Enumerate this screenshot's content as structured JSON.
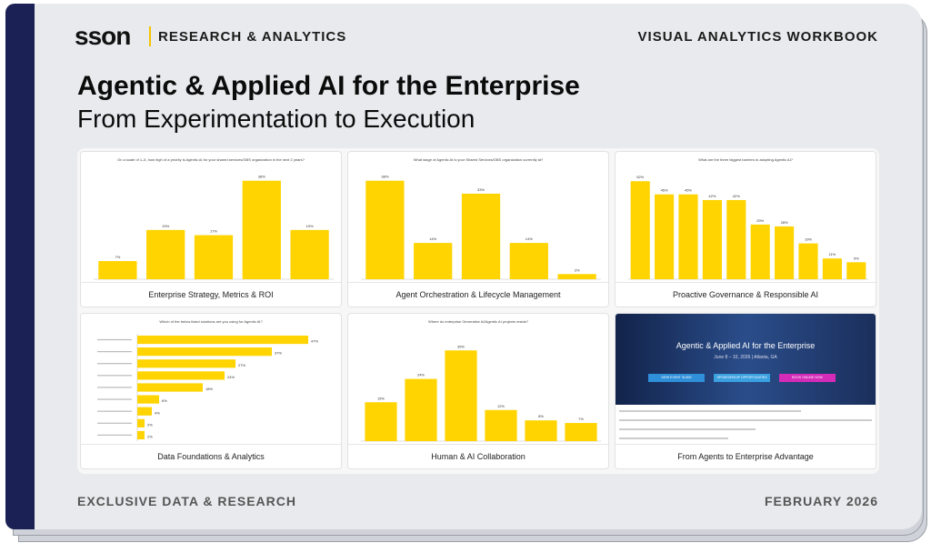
{
  "header": {
    "logo": "sson",
    "brand": "RESEARCH & ANALYTICS",
    "product": "VISUAL ANALYTICS WORKBOOK"
  },
  "title": "Agentic & Applied AI for the Enterprise",
  "subtitle": "From Experimentation to Execution",
  "panels": [
    {
      "caption": "Enterprise Strategy, Metrics & ROI",
      "chart": {
        "type": "column",
        "title": "On a scale of 1–5, how high of a priority is Agentic AI for your shared services/GBS organization in the next 2 years?",
        "values": [
          7,
          19,
          17,
          38,
          19
        ],
        "value_labels": [
          "7%",
          "19%",
          "17%",
          "38%",
          "19%"
        ],
        "ylim": [
          0,
          40
        ],
        "color": "#ffd400"
      }
    },
    {
      "caption": "Agent Orchestration & Lifecycle Management",
      "chart": {
        "type": "column",
        "title": "What stage of Agentic AI is your Shared Services/GBS organization currently at?",
        "values": [
          38,
          14,
          33,
          14,
          2
        ],
        "value_labels": [
          "38%",
          "14%",
          "33%",
          "14%",
          "2%"
        ],
        "ylim": [
          0,
          40
        ],
        "color": "#ffd400"
      }
    },
    {
      "caption": "Proactive Governance & Responsible AI",
      "chart": {
        "type": "column",
        "title": "What are the three biggest barriers to adopting Agentic AI?",
        "values": [
          52,
          45,
          45,
          42,
          42,
          29,
          28,
          19,
          11,
          9
        ],
        "value_labels": [
          "52%",
          "45%",
          "45%",
          "42%",
          "42%",
          "29%",
          "28%",
          "19%",
          "11%",
          "9%"
        ],
        "ylim": [
          0,
          55
        ],
        "color": "#ffd400"
      }
    },
    {
      "caption": "Data Foundations & Analytics",
      "chart": {
        "type": "hbar",
        "title": "Which of the below listed solutions are you using for Agentic AI?",
        "values": [
          47,
          37,
          27,
          24,
          18,
          6,
          4,
          2,
          2
        ],
        "value_labels": [
          "47%",
          "37%",
          "27%",
          "24%",
          "18%",
          "6%",
          "4%",
          "2%",
          "2%"
        ],
        "xlim": [
          0,
          50
        ],
        "color": "#ffd400"
      }
    },
    {
      "caption": "Human & AI Collaboration",
      "chart": {
        "type": "column",
        "title": "Where do enterprise Generative AI/Agentic AI projects reside?",
        "values": [
          15,
          24,
          35,
          12,
          8,
          7
        ],
        "value_labels": [
          "15%",
          "24%",
          "35%",
          "12%",
          "8%",
          "7%"
        ],
        "ylim": [
          0,
          40
        ],
        "color": "#ffd400"
      }
    },
    {
      "caption": "From Agents to Enterprise Advantage",
      "event": {
        "title": "Agentic & Applied AI for the Enterprise",
        "dates": "June 8 – 10, 2026 | Atlanta, GA",
        "buttons": [
          "VIEW EVENT GUIDE",
          "SPONSORSHIP OPPORTUNITIES",
          "BOOK ONLINE NOW"
        ]
      }
    }
  ],
  "footer": {
    "left": "EXCLUSIVE DATA & RESEARCH",
    "right": "FEBRUARY 2026"
  }
}
